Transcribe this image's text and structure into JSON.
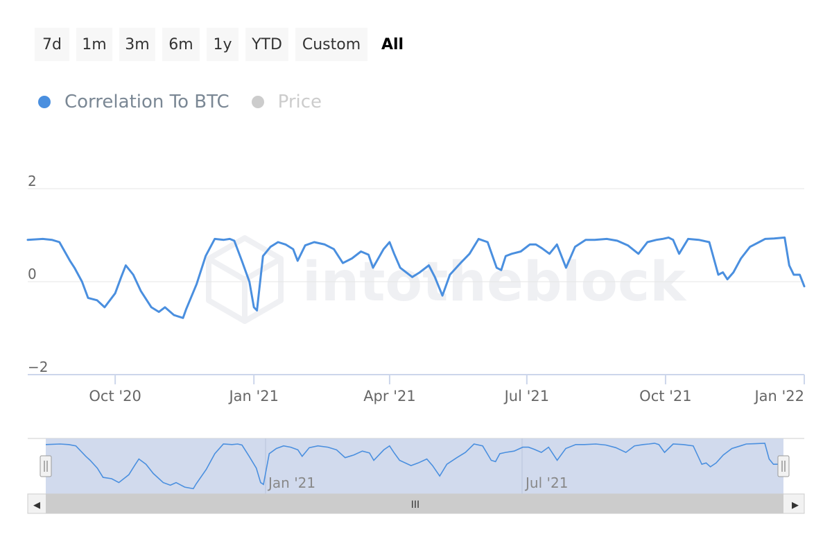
{
  "range_buttons": [
    {
      "label": "7d",
      "selected": false
    },
    {
      "label": "1m",
      "selected": false
    },
    {
      "label": "3m",
      "selected": false
    },
    {
      "label": "6m",
      "selected": false
    },
    {
      "label": "1y",
      "selected": false
    },
    {
      "label": "YTD",
      "selected": false
    },
    {
      "label": "Custom",
      "selected": false
    },
    {
      "label": "All",
      "selected": true
    }
  ],
  "legend": [
    {
      "label": "Correlation To BTC",
      "color": "#4a8fdf",
      "active": true
    },
    {
      "label": "Price",
      "color": "#cccccc",
      "active": false
    }
  ],
  "watermark": "intotheblock",
  "navigator": {
    "labels": [
      "Jan '21",
      "Jul '21"
    ],
    "scroll_grip": "III",
    "left_arrow": "◀",
    "right_arrow": "▶"
  },
  "colors": {
    "line": "#4a8fdf",
    "navigator_fill": "#ccd6eb",
    "grid": "#e6e6e6"
  },
  "chart_data": {
    "type": "line",
    "title": "",
    "xlabel": "",
    "ylabel": "",
    "ylim": [
      -2,
      2
    ],
    "yticks": [
      2,
      0,
      -2
    ],
    "ytick_labels": [
      "2",
      "0",
      "−2"
    ],
    "xlim": [
      "2020-08-04",
      "2022-01-01"
    ],
    "xticks": [
      {
        "date": "2020-10-01",
        "label": "Oct '20"
      },
      {
        "date": "2021-01-01",
        "label": "Jan '21"
      },
      {
        "date": "2021-04-01",
        "label": "Apr '21"
      },
      {
        "date": "2021-07-01",
        "label": "Jul '21"
      },
      {
        "date": "2021-10-01",
        "label": "Oct '21"
      },
      {
        "date": "2022-01-01",
        "label": "Jan '22"
      }
    ],
    "grid": true,
    "legend_position": "top-left",
    "series": [
      {
        "name": "Correlation To BTC",
        "x": [
          "2020-08-04",
          "2020-08-14",
          "2020-08-20",
          "2020-08-25",
          "2020-09-01",
          "2020-09-04",
          "2020-09-09",
          "2020-09-13",
          "2020-09-19",
          "2020-09-24",
          "2020-10-01",
          "2020-10-05",
          "2020-10-08",
          "2020-10-13",
          "2020-10-18",
          "2020-10-25",
          "2020-10-30",
          "2020-11-03",
          "2020-11-09",
          "2020-11-15",
          "2020-11-17",
          "2020-11-24",
          "2020-11-30",
          "2020-12-06",
          "2020-12-12",
          "2020-12-16",
          "2020-12-19",
          "2020-12-24",
          "2020-12-29",
          "2021-01-01",
          "2021-01-03",
          "2021-01-07",
          "2021-01-12",
          "2021-01-17",
          "2021-01-22",
          "2021-01-27",
          "2021-01-30",
          "2021-02-04",
          "2021-02-10",
          "2021-02-17",
          "2021-02-23",
          "2021-03-01",
          "2021-03-07",
          "2021-03-13",
          "2021-03-18",
          "2021-03-21",
          "2021-03-28",
          "2021-04-01",
          "2021-04-04",
          "2021-04-08",
          "2021-04-16",
          "2021-04-21",
          "2021-04-27",
          "2021-05-01",
          "2021-05-06",
          "2021-05-11",
          "2021-05-18",
          "2021-05-24",
          "2021-05-30",
          "2021-06-05",
          "2021-06-11",
          "2021-06-14",
          "2021-06-17",
          "2021-06-21",
          "2021-06-27",
          "2021-07-03",
          "2021-07-07",
          "2021-07-11",
          "2021-07-16",
          "2021-07-21",
          "2021-07-27",
          "2021-08-02",
          "2021-08-09",
          "2021-08-15",
          "2021-08-23",
          "2021-08-30",
          "2021-09-06",
          "2021-09-13",
          "2021-09-19",
          "2021-09-25",
          "2021-09-29",
          "2021-10-03",
          "2021-10-06",
          "2021-10-10",
          "2021-10-16",
          "2021-10-23",
          "2021-10-30",
          "2021-11-05",
          "2021-11-08",
          "2021-11-11",
          "2021-11-15",
          "2021-11-20",
          "2021-11-26",
          "2021-12-02",
          "2021-12-06",
          "2021-12-12",
          "2021-12-19",
          "2021-12-22",
          "2021-12-25",
          "2021-12-29",
          "2022-01-01"
        ],
        "y": [
          0.9,
          0.92,
          0.9,
          0.85,
          0.45,
          0.3,
          0.0,
          -0.35,
          -0.4,
          -0.55,
          -0.25,
          0.1,
          0.35,
          0.15,
          -0.2,
          -0.55,
          -0.65,
          -0.55,
          -0.72,
          -0.78,
          -0.6,
          -0.05,
          0.55,
          0.92,
          0.9,
          0.92,
          0.88,
          0.45,
          0.0,
          -0.55,
          -0.62,
          0.55,
          0.75,
          0.85,
          0.8,
          0.7,
          0.45,
          0.78,
          0.85,
          0.8,
          0.7,
          0.4,
          0.5,
          0.65,
          0.58,
          0.3,
          0.7,
          0.85,
          0.6,
          0.3,
          0.1,
          0.2,
          0.35,
          0.1,
          -0.3,
          0.15,
          0.4,
          0.6,
          0.92,
          0.85,
          0.3,
          0.25,
          0.55,
          0.6,
          0.65,
          0.8,
          0.8,
          0.72,
          0.6,
          0.8,
          0.3,
          0.75,
          0.9,
          0.9,
          0.92,
          0.88,
          0.78,
          0.6,
          0.85,
          0.9,
          0.92,
          0.95,
          0.9,
          0.6,
          0.92,
          0.9,
          0.85,
          0.15,
          0.2,
          0.05,
          0.2,
          0.5,
          0.75,
          0.85,
          0.92,
          0.93,
          0.95,
          0.35,
          0.15,
          0.15,
          -0.1
        ]
      }
    ]
  }
}
